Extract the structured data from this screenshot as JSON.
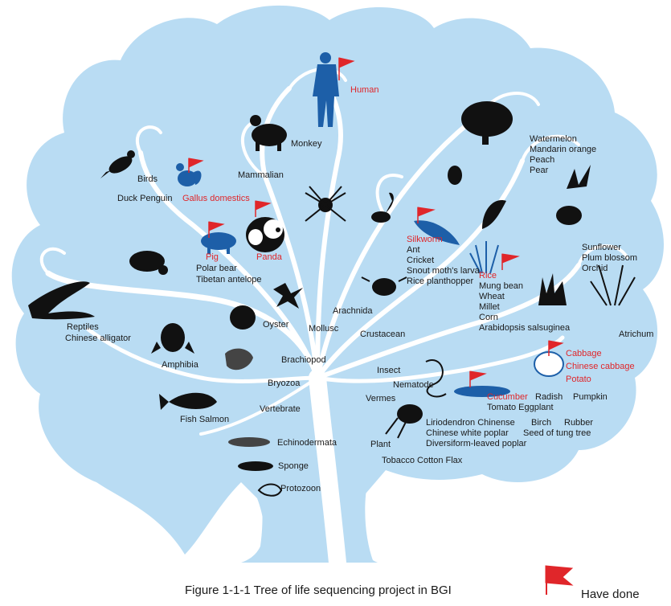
{
  "labels": {
    "human": "Human",
    "monkey": "Monkey",
    "birds": "Birds",
    "mammalian": "Mammalian",
    "duck_penguin": "Duck  Penguin",
    "gallus": "Gallus domestics",
    "pig": "Pig",
    "panda": "Panda",
    "polar_bear": "Polar bear",
    "tibetan": "Tibetan antelope",
    "reptiles": "Reptiles",
    "alligator": "Chinese alligator",
    "oyster": "Oyster",
    "mollusc": "Mollusc",
    "arachnida": "Arachnida",
    "crustacean": "Crustacean",
    "amphibia": "Amphibia",
    "brachiopod": "Brachiopod",
    "insect": "Insect",
    "bryozoa": "Bryozoa",
    "nematode": "Nematode",
    "vermes": "Vermes",
    "fish_salmon": "Fish   Salmon",
    "vertebrate": "Vertebrate",
    "echinodermata": "Echinodermata",
    "plant": "Plant",
    "sponge": "Sponge",
    "protozoon": "Protozoon",
    "tobacco": "Tobacco   Cotton   Flax",
    "silkworm": "Silkworm",
    "ant": "Ant",
    "cricket": "Cricket",
    "snout": "Snout moth's larva",
    "planthopper": "Rice planthopper",
    "rice": "Rice",
    "mung": "Mung bean",
    "wheat": "Wheat",
    "millet": "Millet",
    "corn": "Corn",
    "arabidopsis": "Arabidopsis salsuginea",
    "watermelon": "Watermelon",
    "mandarin": "Mandarin orange",
    "peach": "Peach",
    "pear": "Pear",
    "sunflower": "Sunflower",
    "plum": "Plum blossom",
    "orchid": "Orchid",
    "atrichum": "Atrichum",
    "cabbage": "Cabbage",
    "chinese_cabbage": "Chinese cabbage",
    "potato": "Potato",
    "cucumber": "Cucumber",
    "radish": "Radish",
    "pumpkin": "Pumpkin",
    "tomato": "Tomato   Eggplant",
    "liriodendron": "Liriodendron Chinense",
    "birch": "Birch",
    "rubber": "Rubber",
    "white_poplar": "Chinese white poplar",
    "tung": "Seed of tung tree",
    "poplar": "Diversiform-leaved poplar"
  },
  "caption": "Figure 1-1-1  Tree of life sequencing project in BGI",
  "legend": {
    "text": "Have done",
    "icon": "red-flag-icon"
  },
  "colors": {
    "canopy": "#b9dcf3",
    "branch": "#ffffff",
    "done": "#e0262a",
    "silhouette": "#111111",
    "blue_organism": "#1d5fa8"
  }
}
